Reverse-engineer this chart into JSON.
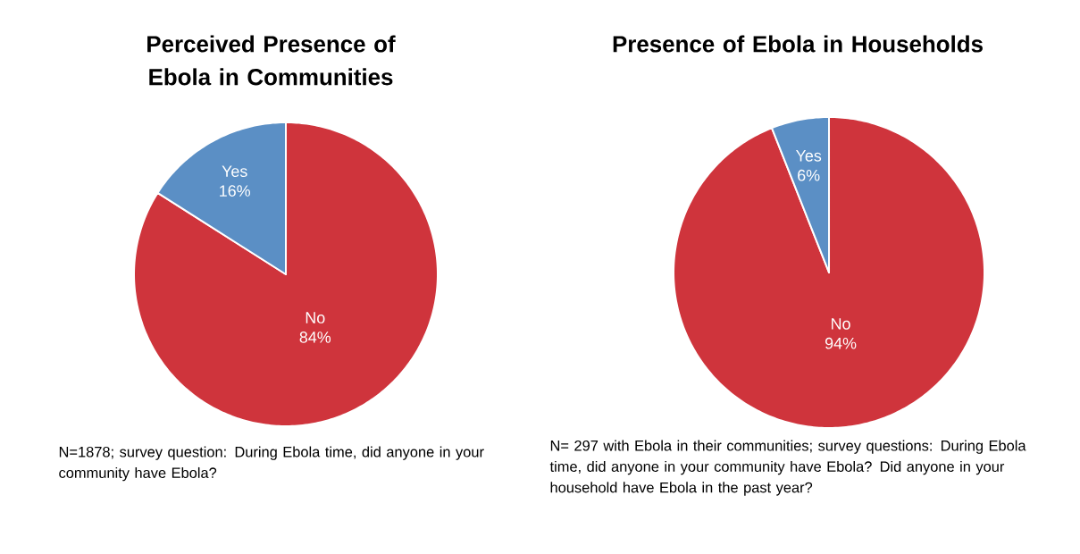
{
  "chart_data": [
    {
      "type": "pie",
      "title": "Perceived Presence of Ebola in Communities",
      "categories": [
        "No",
        "Yes"
      ],
      "values": [
        84,
        16
      ],
      "colors": [
        "#cf343c",
        "#5b8fc5"
      ],
      "value_labels": [
        "84%",
        "16%"
      ],
      "annotations": [
        "N=1878; survey question: During Ebola time, did anyone in your community have Ebola?"
      ]
    },
    {
      "type": "pie",
      "title": "Presence of Ebola in Households",
      "categories": [
        "No",
        "Yes"
      ],
      "values": [
        94,
        6
      ],
      "colors": [
        "#cf343c",
        "#5b8fc5"
      ],
      "value_labels": [
        "94%",
        "6%"
      ],
      "annotations": [
        "N= 297 with Ebola in their communities; survey questions: During Ebola time, did anyone in your community have Ebola? Did anyone in your household have Ebola in the past year?"
      ]
    }
  ]
}
